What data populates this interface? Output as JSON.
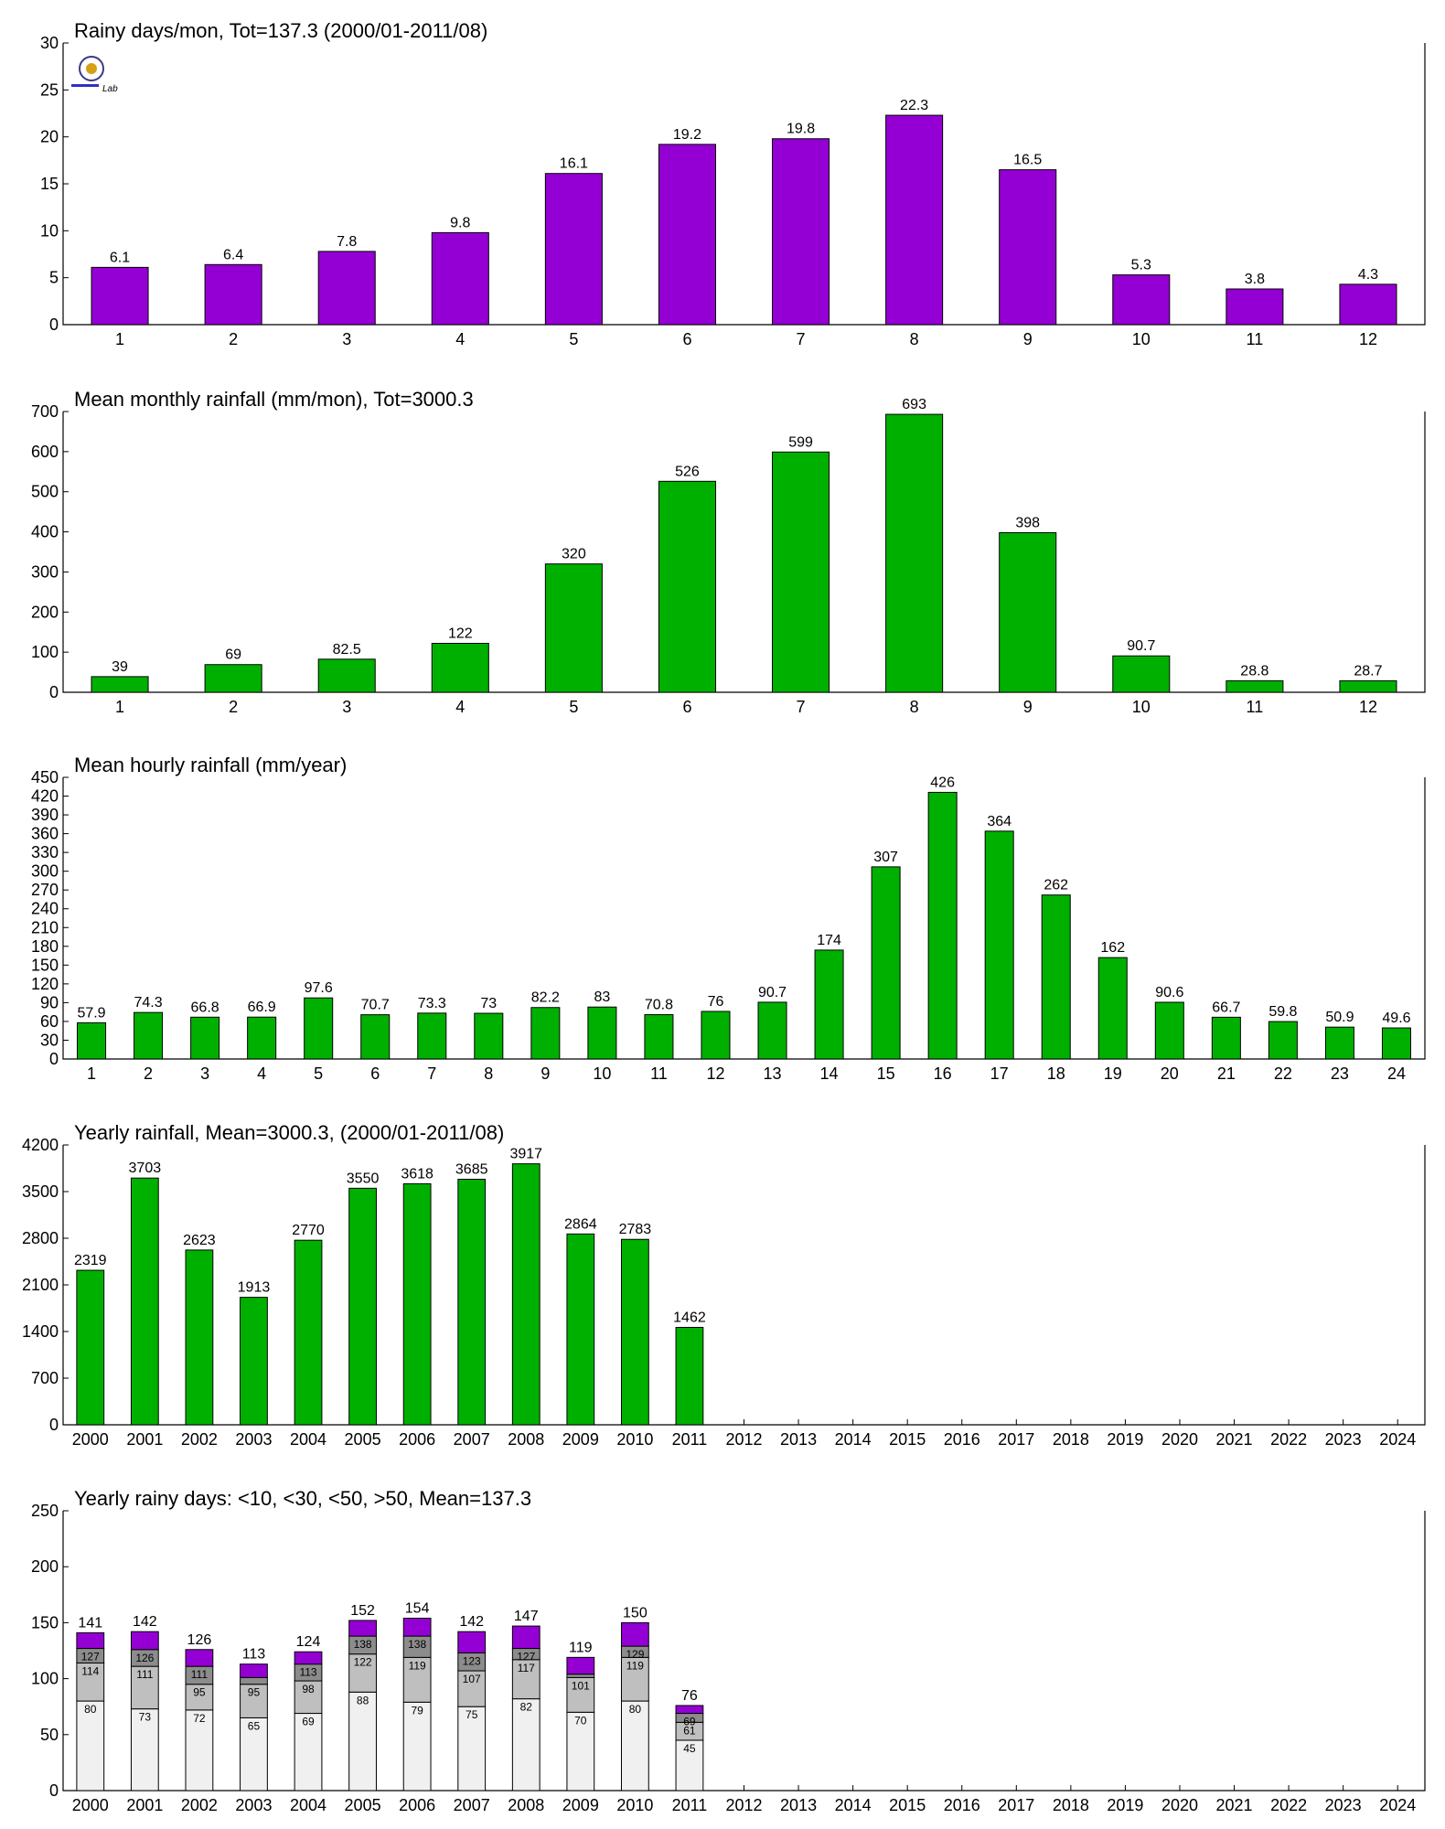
{
  "colors": {
    "purple": "#9400d3",
    "green": "#00b000",
    "seg_lt10": "#f0f0f0",
    "seg_lt30": "#bfbfbf",
    "seg_lt50": "#8c8c8c",
    "seg_gt50": "#9400d3"
  },
  "logo": {
    "text": "Lab",
    "icon": "lab-seal-logo"
  },
  "chart_data": [
    {
      "id": "rainy-days",
      "type": "bar",
      "title": "Rainy days/mon, Tot=137.3 (2000/01-2011/08)",
      "categories": [
        "1",
        "2",
        "3",
        "4",
        "5",
        "6",
        "7",
        "8",
        "9",
        "10",
        "11",
        "12"
      ],
      "values": [
        6.1,
        6.4,
        7.8,
        9.8,
        16.1,
        19.2,
        19.8,
        22.3,
        16.5,
        5.3,
        3.8,
        4.3
      ],
      "labels": [
        "6.1",
        "6.4",
        "7.8",
        "9.8",
        "16.1",
        "19.2",
        "19.8",
        "22.3",
        "16.5",
        "5.3",
        "3.8",
        "4.3"
      ],
      "ylim": [
        0,
        30
      ],
      "yticks": [
        "0",
        "5",
        "10",
        "15",
        "20",
        "25",
        "30"
      ],
      "color": "#9400d3"
    },
    {
      "id": "monthly-rainfall",
      "type": "bar",
      "title": "Mean monthly rainfall (mm/mon), Tot=3000.3",
      "categories": [
        "1",
        "2",
        "3",
        "4",
        "5",
        "6",
        "7",
        "8",
        "9",
        "10",
        "11",
        "12"
      ],
      "values": [
        39,
        69,
        82.5,
        122,
        320,
        526,
        599,
        693,
        398,
        90.7,
        28.8,
        28.7
      ],
      "labels": [
        "39",
        "69",
        "82.5",
        "122",
        "320",
        "526",
        "599",
        "693",
        "398",
        "90.7",
        "28.8",
        "28.7"
      ],
      "ylim": [
        0,
        700
      ],
      "yticks": [
        "0",
        "100",
        "200",
        "300",
        "400",
        "500",
        "600",
        "700"
      ],
      "color": "#00b000"
    },
    {
      "id": "hourly-rainfall",
      "type": "bar",
      "title": "Mean hourly rainfall (mm/year)",
      "categories": [
        "1",
        "2",
        "3",
        "4",
        "5",
        "6",
        "7",
        "8",
        "9",
        "10",
        "11",
        "12",
        "13",
        "14",
        "15",
        "16",
        "17",
        "18",
        "19",
        "20",
        "21",
        "22",
        "23",
        "24"
      ],
      "values": [
        57.9,
        74.3,
        66.8,
        66.9,
        97.6,
        70.7,
        73.3,
        73,
        82.2,
        83,
        70.8,
        76,
        90.7,
        174,
        307,
        426,
        364,
        262,
        162,
        90.6,
        66.7,
        59.8,
        50.9,
        49.6
      ],
      "labels": [
        "57.9",
        "74.3",
        "66.8",
        "66.9",
        "97.6",
        "70.7",
        "73.3",
        "73",
        "82.2",
        "83",
        "70.8",
        "76",
        "90.7",
        "174",
        "307",
        "426",
        "364",
        "262",
        "162",
        "90.6",
        "66.7",
        "59.8",
        "50.9",
        "49.6"
      ],
      "ylim": [
        0,
        450
      ],
      "yticks": [
        "0",
        "30",
        "60",
        "90",
        "120",
        "150",
        "180",
        "210",
        "240",
        "270",
        "300",
        "330",
        "360",
        "390",
        "420",
        "450"
      ],
      "color": "#00b000"
    },
    {
      "id": "yearly-rainfall",
      "type": "bar",
      "title": "Yearly rainfall, Mean=3000.3, (2000/01-2011/08)",
      "categories": [
        "2000",
        "2001",
        "2002",
        "2003",
        "2004",
        "2005",
        "2006",
        "2007",
        "2008",
        "2009",
        "2010",
        "2011",
        "2012",
        "2013",
        "2014",
        "2015",
        "2016",
        "2017",
        "2018",
        "2019",
        "2020",
        "2021",
        "2022",
        "2023",
        "2024"
      ],
      "values": [
        2319,
        3703,
        2623,
        1913,
        2770,
        3550,
        3618,
        3685,
        3917,
        2864,
        2783,
        1462
      ],
      "labels": [
        "2319",
        "3703",
        "2623",
        "1913",
        "2770",
        "3550",
        "3618",
        "3685",
        "3917",
        "2864",
        "2783",
        "1462"
      ],
      "ylim": [
        0,
        4200
      ],
      "yticks": [
        "0",
        "700",
        "1400",
        "2100",
        "2800",
        "3500",
        "4200"
      ],
      "color": "#00b000"
    },
    {
      "id": "yearly-rainy-days",
      "type": "bar",
      "stacked": true,
      "title": "Yearly rainy days: <10, <30, <50, >50, Mean=137.3",
      "categories": [
        "2000",
        "2001",
        "2002",
        "2003",
        "2004",
        "2005",
        "2006",
        "2007",
        "2008",
        "2009",
        "2010",
        "2011",
        "2012",
        "2013",
        "2014",
        "2015",
        "2016",
        "2017",
        "2018",
        "2019",
        "2020",
        "2021",
        "2022",
        "2023",
        "2024"
      ],
      "totals": [
        141,
        142,
        126,
        113,
        124,
        152,
        154,
        142,
        147,
        119,
        150,
        76
      ],
      "total_labels": [
        "141",
        "142",
        "126",
        "113",
        "124",
        "152",
        "154",
        "142",
        "147",
        "119",
        "150",
        "76"
      ],
      "cumulative": [
        [
          80,
          114,
          127,
          141
        ],
        [
          73,
          111,
          126,
          142
        ],
        [
          72,
          95,
          111,
          126
        ],
        [
          65,
          95,
          101,
          113
        ],
        [
          69,
          98,
          113,
          124
        ],
        [
          88,
          122,
          138,
          152
        ],
        [
          79,
          119,
          138,
          154
        ],
        [
          75,
          107,
          123,
          142
        ],
        [
          82,
          117,
          127,
          147
        ],
        [
          70,
          101,
          104,
          119
        ],
        [
          80,
          119,
          129,
          150
        ],
        [
          45,
          61,
          69,
          76
        ]
      ],
      "segment_labels": [
        [
          "80",
          "114",
          "127"
        ],
        [
          "73",
          "111",
          "126"
        ],
        [
          "72",
          "95",
          "111"
        ],
        [
          "65",
          "95",
          ""
        ],
        [
          "69",
          "98",
          "113"
        ],
        [
          "88",
          "122",
          "138"
        ],
        [
          "79",
          "119",
          "138"
        ],
        [
          "75",
          "107",
          "123"
        ],
        [
          "82",
          "117",
          "127"
        ],
        [
          "70",
          "101",
          ""
        ],
        [
          "80",
          "119",
          "129"
        ],
        [
          "45",
          "61",
          "69"
        ]
      ],
      "ylim": [
        0,
        250
      ],
      "yticks": [
        "0",
        "50",
        "100",
        "150",
        "200",
        "250"
      ]
    }
  ]
}
